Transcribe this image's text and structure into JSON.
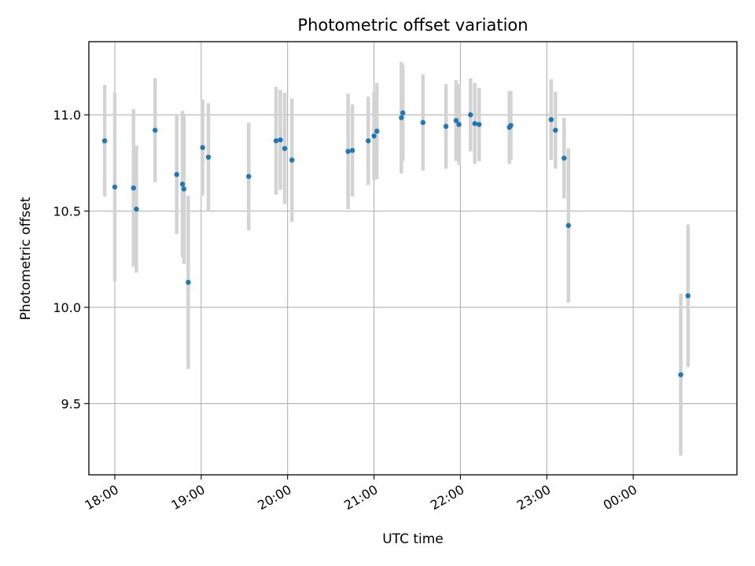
{
  "chart_data": {
    "type": "scatter",
    "title": "Photometric offset variation",
    "xlabel": "UTC time",
    "ylabel": "Photometric offset",
    "x_axis": {
      "type": "time",
      "range": [
        "17:42",
        "01:12"
      ]
    },
    "ylim": [
      9.13,
      11.38
    ],
    "yticks": [
      9.5,
      10.0,
      10.5,
      11.0
    ],
    "ytick_labels": [
      "9.5",
      "10.0",
      "10.5",
      "11.0"
    ],
    "xticks": [
      "18:00",
      "19:00",
      "20:00",
      "21:00",
      "22:00",
      "23:00",
      "00:00"
    ],
    "grid": true,
    "error_bars": true,
    "colors": {
      "point": "#1f77b4",
      "error_bar": "#d3d3d3"
    },
    "series": [
      {
        "points": [
          {
            "t": "17:53",
            "y": 10.865,
            "err": 0.29
          },
          {
            "t": "18:00",
            "y": 10.625,
            "err": 0.49
          },
          {
            "t": "18:13",
            "y": 10.62,
            "err": 0.41
          },
          {
            "t": "18:15",
            "y": 10.51,
            "err": 0.33
          },
          {
            "t": "18:28",
            "y": 10.92,
            "err": 0.27
          },
          {
            "t": "18:43",
            "y": 10.69,
            "err": 0.31
          },
          {
            "t": "18:47",
            "y": 10.64,
            "err": 0.38
          },
          {
            "t": "18:48",
            "y": 10.615,
            "err": 0.39
          },
          {
            "t": "18:51",
            "y": 10.13,
            "err": 0.45
          },
          {
            "t": "19:01",
            "y": 10.83,
            "err": 0.25
          },
          {
            "t": "19:05",
            "y": 10.78,
            "err": 0.28
          },
          {
            "t": "19:33",
            "y": 10.68,
            "err": 0.28
          },
          {
            "t": "19:52",
            "y": 10.865,
            "err": 0.28
          },
          {
            "t": "19:55",
            "y": 10.87,
            "err": 0.26
          },
          {
            "t": "19:58",
            "y": 10.825,
            "err": 0.29
          },
          {
            "t": "20:03",
            "y": 10.765,
            "err": 0.32
          },
          {
            "t": "20:42",
            "y": 10.81,
            "err": 0.3
          },
          {
            "t": "20:45",
            "y": 10.815,
            "err": 0.24
          },
          {
            "t": "20:56",
            "y": 10.865,
            "err": 0.23
          },
          {
            "t": "21:00",
            "y": 10.89,
            "err": 0.23
          },
          {
            "t": "21:02",
            "y": 10.915,
            "err": 0.25
          },
          {
            "t": "21:19",
            "y": 10.985,
            "err": 0.29
          },
          {
            "t": "21:20",
            "y": 11.01,
            "err": 0.25
          },
          {
            "t": "21:34",
            "y": 10.96,
            "err": 0.25
          },
          {
            "t": "21:50",
            "y": 10.94,
            "err": 0.22
          },
          {
            "t": "21:57",
            "y": 10.97,
            "err": 0.21
          },
          {
            "t": "21:59",
            "y": 10.95,
            "err": 0.21
          },
          {
            "t": "22:07",
            "y": 11.0,
            "err": 0.19
          },
          {
            "t": "22:10",
            "y": 10.955,
            "err": 0.21
          },
          {
            "t": "22:13",
            "y": 10.95,
            "err": 0.19
          },
          {
            "t": "22:34",
            "y": 10.935,
            "err": 0.19
          },
          {
            "t": "22:35",
            "y": 10.945,
            "err": 0.18
          },
          {
            "t": "23:03",
            "y": 10.975,
            "err": 0.21
          },
          {
            "t": "23:06",
            "y": 10.92,
            "err": 0.2
          },
          {
            "t": "23:12",
            "y": 10.775,
            "err": 0.21
          },
          {
            "t": "23:15",
            "y": 10.425,
            "err": 0.4
          },
          {
            "t": "00:33",
            "y": 9.65,
            "err": 0.42
          },
          {
            "t": "00:38",
            "y": 10.06,
            "err": 0.37
          }
        ]
      }
    ]
  }
}
